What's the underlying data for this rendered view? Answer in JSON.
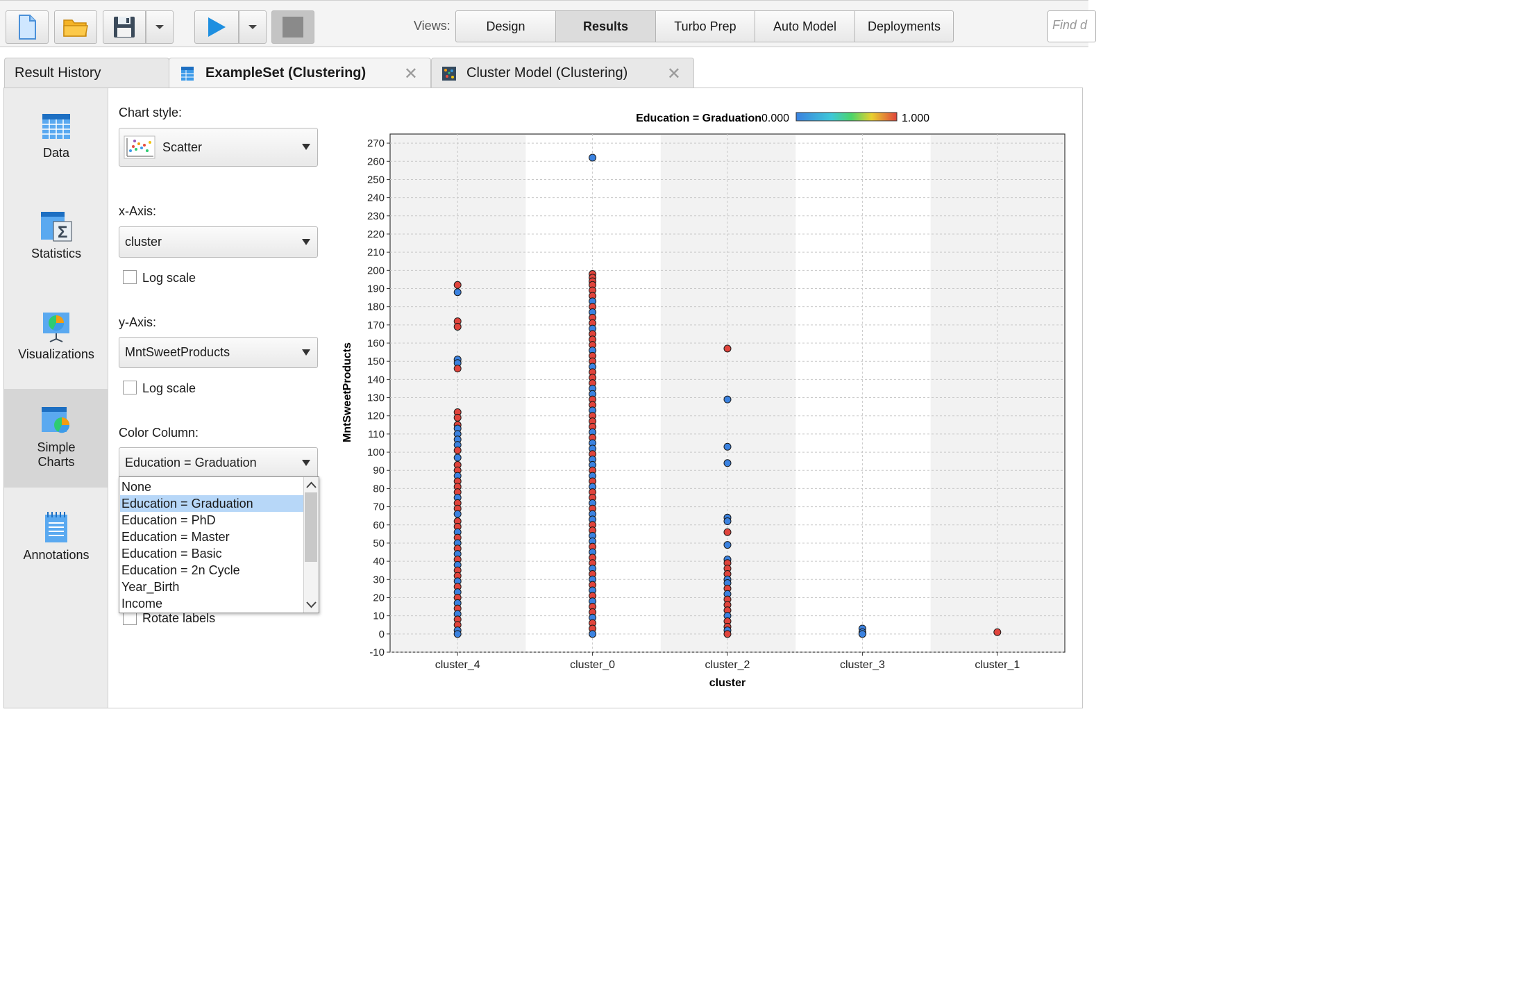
{
  "toolbar": {
    "buttons": [
      {
        "icon": "new-file-icon"
      },
      {
        "icon": "open-folder-icon"
      },
      {
        "icon": "save-icon"
      },
      {
        "icon": "run-play-icon"
      },
      {
        "icon": "stop-icon"
      }
    ],
    "views_label": "Views:",
    "views": [
      {
        "label": "Design",
        "active": false
      },
      {
        "label": "Results",
        "active": true
      },
      {
        "label": "Turbo Prep",
        "active": false
      },
      {
        "label": "Auto Model",
        "active": false
      },
      {
        "label": "Deployments",
        "active": false
      }
    ],
    "find_placeholder": "Find d"
  },
  "tabs": [
    {
      "label": "Result History"
    },
    {
      "label": "ExampleSet (Clustering)",
      "icon": "exampleset-table-icon",
      "active": true
    },
    {
      "label": "Cluster Model (Clustering)",
      "icon": "cluster-model-icon"
    }
  ],
  "sidebar": {
    "items": [
      {
        "label": "Data",
        "icon": "data-table-icon"
      },
      {
        "label": "Statistics",
        "icon": "statistics-sigma-icon"
      },
      {
        "label": "Visualizations",
        "icon": "visualizations-icon"
      },
      {
        "label": "Simple Charts",
        "icon": "simple-charts-icon",
        "active": true
      },
      {
        "label": "Annotations",
        "icon": "annotations-notepad-icon"
      }
    ]
  },
  "controls": {
    "chart_style_label": "Chart style:",
    "chart_style_value": "Scatter",
    "x_axis_label": "x-Axis:",
    "x_axis_value": "cluster",
    "x_log_label": "Log scale",
    "y_axis_label": "y-Axis:",
    "y_axis_value": "MntSweetProducts",
    "y_log_label": "Log scale",
    "color_column_label": "Color Column:",
    "color_column_value": "Education = Graduation",
    "rotate_labels": "Rotate labels",
    "color_options": [
      "None",
      "Education = Graduation",
      "Education = PhD",
      "Education = Master",
      "Education = Basic",
      "Education = 2n Cycle",
      "Year_Birth",
      "Income"
    ],
    "selected_option": "Education = Graduation"
  },
  "colors": {
    "low": "#3b82e0",
    "high": "#e0443c",
    "panel_grey": "#f2f2f2",
    "selection": "#b7d7f8"
  },
  "chart_data": {
    "type": "scatter",
    "legend_title": "Education = Graduation",
    "legend_min": "0.000",
    "legend_max": "1.000",
    "xlabel": "cluster",
    "ylabel": "MntSweetProducts",
    "categories": [
      "cluster_4",
      "cluster_0",
      "cluster_2",
      "cluster_3",
      "cluster_1"
    ],
    "ylim": [
      -10,
      275
    ],
    "yticks": [
      "-10",
      "0",
      "10",
      "20",
      "30",
      "40",
      "50",
      "60",
      "70",
      "80",
      "90",
      "100",
      "110",
      "120",
      "130",
      "140",
      "150",
      "160",
      "170",
      "180",
      "190",
      "200",
      "210",
      "220",
      "230",
      "240",
      "250",
      "260",
      "270"
    ],
    "grid": true,
    "points": [
      {
        "cat": "cluster_4",
        "y": 192,
        "edu": 1
      },
      {
        "cat": "cluster_4",
        "y": 188,
        "edu": 0
      },
      {
        "cat": "cluster_4",
        "y": 172,
        "edu": 1
      },
      {
        "cat": "cluster_4",
        "y": 169,
        "edu": 1
      },
      {
        "cat": "cluster_4",
        "y": 151,
        "edu": 0
      },
      {
        "cat": "cluster_4",
        "y": 149,
        "edu": 0
      },
      {
        "cat": "cluster_4",
        "y": 146,
        "edu": 1
      },
      {
        "cat": "cluster_4",
        "y": 122,
        "edu": 1
      },
      {
        "cat": "cluster_4",
        "y": 119,
        "edu": 1
      },
      {
        "cat": "cluster_4",
        "y": 115,
        "edu": 1
      },
      {
        "cat": "cluster_4",
        "y": 113,
        "edu": 0
      },
      {
        "cat": "cluster_4",
        "y": 110,
        "edu": 0
      },
      {
        "cat": "cluster_4",
        "y": 107,
        "edu": 0
      },
      {
        "cat": "cluster_4",
        "y": 104,
        "edu": 0
      },
      {
        "cat": "cluster_4",
        "y": 101,
        "edu": 1
      },
      {
        "cat": "cluster_4",
        "y": 97,
        "edu": 0
      },
      {
        "cat": "cluster_4",
        "y": 93,
        "edu": 1
      },
      {
        "cat": "cluster_4",
        "y": 90,
        "edu": 1
      },
      {
        "cat": "cluster_4",
        "y": 87,
        "edu": 0
      },
      {
        "cat": "cluster_4",
        "y": 84,
        "edu": 1
      },
      {
        "cat": "cluster_4",
        "y": 81,
        "edu": 1
      },
      {
        "cat": "cluster_4",
        "y": 78,
        "edu": 1
      },
      {
        "cat": "cluster_4",
        "y": 75,
        "edu": 0
      },
      {
        "cat": "cluster_4",
        "y": 72,
        "edu": 1
      },
      {
        "cat": "cluster_4",
        "y": 69,
        "edu": 1
      },
      {
        "cat": "cluster_4",
        "y": 66,
        "edu": 0
      },
      {
        "cat": "cluster_4",
        "y": 62,
        "edu": 1
      },
      {
        "cat": "cluster_4",
        "y": 59,
        "edu": 1
      },
      {
        "cat": "cluster_4",
        "y": 56,
        "edu": 0
      },
      {
        "cat": "cluster_4",
        "y": 53,
        "edu": 1
      },
      {
        "cat": "cluster_4",
        "y": 50,
        "edu": 0
      },
      {
        "cat": "cluster_4",
        "y": 47,
        "edu": 1
      },
      {
        "cat": "cluster_4",
        "y": 44,
        "edu": 0
      },
      {
        "cat": "cluster_4",
        "y": 41,
        "edu": 1
      },
      {
        "cat": "cluster_4",
        "y": 38,
        "edu": 0
      },
      {
        "cat": "cluster_4",
        "y": 35,
        "edu": 1
      },
      {
        "cat": "cluster_4",
        "y": 32,
        "edu": 1
      },
      {
        "cat": "cluster_4",
        "y": 29,
        "edu": 0
      },
      {
        "cat": "cluster_4",
        "y": 26,
        "edu": 1
      },
      {
        "cat": "cluster_4",
        "y": 23,
        "edu": 0
      },
      {
        "cat": "cluster_4",
        "y": 20,
        "edu": 1
      },
      {
        "cat": "cluster_4",
        "y": 17,
        "edu": 0
      },
      {
        "cat": "cluster_4",
        "y": 14,
        "edu": 1
      },
      {
        "cat": "cluster_4",
        "y": 11,
        "edu": 0
      },
      {
        "cat": "cluster_4",
        "y": 8,
        "edu": 1
      },
      {
        "cat": "cluster_4",
        "y": 5,
        "edu": 1
      },
      {
        "cat": "cluster_4",
        "y": 2,
        "edu": 0
      },
      {
        "cat": "cluster_4",
        "y": 0,
        "edu": 0
      },
      {
        "cat": "cluster_0",
        "y": 262,
        "edu": 0
      },
      {
        "cat": "cluster_0",
        "y": 198,
        "edu": 1
      },
      {
        "cat": "cluster_0",
        "y": 196,
        "edu": 1
      },
      {
        "cat": "cluster_0",
        "y": 194,
        "edu": 1
      },
      {
        "cat": "cluster_0",
        "y": 192,
        "edu": 1
      },
      {
        "cat": "cluster_0",
        "y": 189,
        "edu": 1
      },
      {
        "cat": "cluster_0",
        "y": 186,
        "edu": 1
      },
      {
        "cat": "cluster_0",
        "y": 183,
        "edu": 0
      },
      {
        "cat": "cluster_0",
        "y": 180,
        "edu": 1
      },
      {
        "cat": "cluster_0",
        "y": 177,
        "edu": 0
      },
      {
        "cat": "cluster_0",
        "y": 174,
        "edu": 1
      },
      {
        "cat": "cluster_0",
        "y": 171,
        "edu": 1
      },
      {
        "cat": "cluster_0",
        "y": 168,
        "edu": 0
      },
      {
        "cat": "cluster_0",
        "y": 165,
        "edu": 1
      },
      {
        "cat": "cluster_0",
        "y": 162,
        "edu": 1
      },
      {
        "cat": "cluster_0",
        "y": 159,
        "edu": 1
      },
      {
        "cat": "cluster_0",
        "y": 156,
        "edu": 0
      },
      {
        "cat": "cluster_0",
        "y": 153,
        "edu": 1
      },
      {
        "cat": "cluster_0",
        "y": 150,
        "edu": 1
      },
      {
        "cat": "cluster_0",
        "y": 147,
        "edu": 0
      },
      {
        "cat": "cluster_0",
        "y": 144,
        "edu": 1
      },
      {
        "cat": "cluster_0",
        "y": 141,
        "edu": 1
      },
      {
        "cat": "cluster_0",
        "y": 138,
        "edu": 1
      },
      {
        "cat": "cluster_0",
        "y": 135,
        "edu": 0
      },
      {
        "cat": "cluster_0",
        "y": 132,
        "edu": 0
      },
      {
        "cat": "cluster_0",
        "y": 129,
        "edu": 1
      },
      {
        "cat": "cluster_0",
        "y": 126,
        "edu": 1
      },
      {
        "cat": "cluster_0",
        "y": 123,
        "edu": 0
      },
      {
        "cat": "cluster_0",
        "y": 120,
        "edu": 1
      },
      {
        "cat": "cluster_0",
        "y": 117,
        "edu": 1
      },
      {
        "cat": "cluster_0",
        "y": 114,
        "edu": 1
      },
      {
        "cat": "cluster_0",
        "y": 111,
        "edu": 0
      },
      {
        "cat": "cluster_0",
        "y": 108,
        "edu": 1
      },
      {
        "cat": "cluster_0",
        "y": 105,
        "edu": 0
      },
      {
        "cat": "cluster_0",
        "y": 102,
        "edu": 0
      },
      {
        "cat": "cluster_0",
        "y": 99,
        "edu": 1
      },
      {
        "cat": "cluster_0",
        "y": 96,
        "edu": 0
      },
      {
        "cat": "cluster_0",
        "y": 93,
        "edu": 0
      },
      {
        "cat": "cluster_0",
        "y": 90,
        "edu": 1
      },
      {
        "cat": "cluster_0",
        "y": 87,
        "edu": 0
      },
      {
        "cat": "cluster_0",
        "y": 84,
        "edu": 1
      },
      {
        "cat": "cluster_0",
        "y": 81,
        "edu": 0
      },
      {
        "cat": "cluster_0",
        "y": 78,
        "edu": 1
      },
      {
        "cat": "cluster_0",
        "y": 75,
        "edu": 1
      },
      {
        "cat": "cluster_0",
        "y": 72,
        "edu": 0
      },
      {
        "cat": "cluster_0",
        "y": 69,
        "edu": 1
      },
      {
        "cat": "cluster_0",
        "y": 66,
        "edu": 0
      },
      {
        "cat": "cluster_0",
        "y": 63,
        "edu": 0
      },
      {
        "cat": "cluster_0",
        "y": 60,
        "edu": 1
      },
      {
        "cat": "cluster_0",
        "y": 57,
        "edu": 1
      },
      {
        "cat": "cluster_0",
        "y": 54,
        "edu": 0
      },
      {
        "cat": "cluster_0",
        "y": 51,
        "edu": 0
      },
      {
        "cat": "cluster_0",
        "y": 48,
        "edu": 1
      },
      {
        "cat": "cluster_0",
        "y": 45,
        "edu": 0
      },
      {
        "cat": "cluster_0",
        "y": 42,
        "edu": 1
      },
      {
        "cat": "cluster_0",
        "y": 39,
        "edu": 1
      },
      {
        "cat": "cluster_0",
        "y": 36,
        "edu": 0
      },
      {
        "cat": "cluster_0",
        "y": 33,
        "edu": 1
      },
      {
        "cat": "cluster_0",
        "y": 30,
        "edu": 0
      },
      {
        "cat": "cluster_0",
        "y": 27,
        "edu": 1
      },
      {
        "cat": "cluster_0",
        "y": 24,
        "edu": 0
      },
      {
        "cat": "cluster_0",
        "y": 21,
        "edu": 1
      },
      {
        "cat": "cluster_0",
        "y": 18,
        "edu": 0
      },
      {
        "cat": "cluster_0",
        "y": 15,
        "edu": 1
      },
      {
        "cat": "cluster_0",
        "y": 12,
        "edu": 1
      },
      {
        "cat": "cluster_0",
        "y": 9,
        "edu": 0
      },
      {
        "cat": "cluster_0",
        "y": 6,
        "edu": 1
      },
      {
        "cat": "cluster_0",
        "y": 3,
        "edu": 1
      },
      {
        "cat": "cluster_0",
        "y": 0,
        "edu": 0
      },
      {
        "cat": "cluster_2",
        "y": 157,
        "edu": 1
      },
      {
        "cat": "cluster_2",
        "y": 129,
        "edu": 0
      },
      {
        "cat": "cluster_2",
        "y": 103,
        "edu": 0
      },
      {
        "cat": "cluster_2",
        "y": 94,
        "edu": 0
      },
      {
        "cat": "cluster_2",
        "y": 64,
        "edu": 0
      },
      {
        "cat": "cluster_2",
        "y": 62,
        "edu": 0
      },
      {
        "cat": "cluster_2",
        "y": 56,
        "edu": 1
      },
      {
        "cat": "cluster_2",
        "y": 49,
        "edu": 0
      },
      {
        "cat": "cluster_2",
        "y": 41,
        "edu": 0
      },
      {
        "cat": "cluster_2",
        "y": 39,
        "edu": 1
      },
      {
        "cat": "cluster_2",
        "y": 36,
        "edu": 1
      },
      {
        "cat": "cluster_2",
        "y": 33,
        "edu": 1
      },
      {
        "cat": "cluster_2",
        "y": 30,
        "edu": 0
      },
      {
        "cat": "cluster_2",
        "y": 28,
        "edu": 0
      },
      {
        "cat": "cluster_2",
        "y": 25,
        "edu": 1
      },
      {
        "cat": "cluster_2",
        "y": 22,
        "edu": 0
      },
      {
        "cat": "cluster_2",
        "y": 19,
        "edu": 1
      },
      {
        "cat": "cluster_2",
        "y": 16,
        "edu": 1
      },
      {
        "cat": "cluster_2",
        "y": 13,
        "edu": 1
      },
      {
        "cat": "cluster_2",
        "y": 10,
        "edu": 0
      },
      {
        "cat": "cluster_2",
        "y": 7,
        "edu": 1
      },
      {
        "cat": "cluster_2",
        "y": 4,
        "edu": 1
      },
      {
        "cat": "cluster_2",
        "y": 2,
        "edu": 0
      },
      {
        "cat": "cluster_2",
        "y": 0,
        "edu": 1
      },
      {
        "cat": "cluster_3",
        "y": 3,
        "edu": 0
      },
      {
        "cat": "cluster_3",
        "y": 1,
        "edu": 0
      },
      {
        "cat": "cluster_3",
        "y": 0,
        "edu": 0
      },
      {
        "cat": "cluster_1",
        "y": 1,
        "edu": 1
      }
    ]
  }
}
